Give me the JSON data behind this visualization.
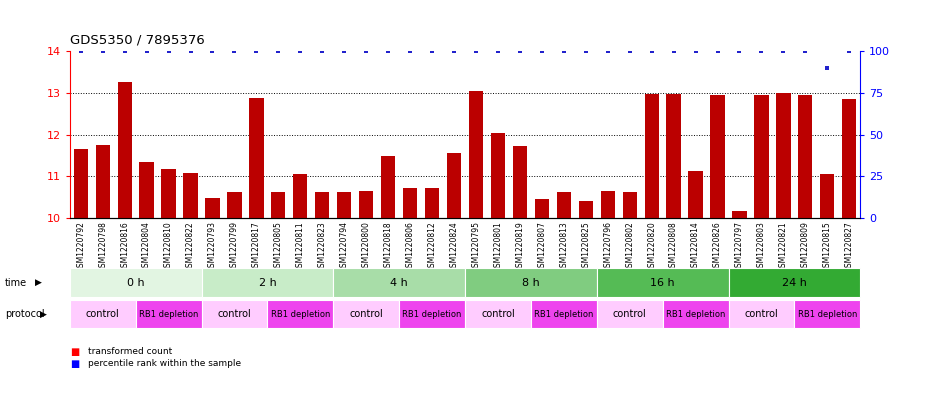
{
  "title": "GDS5350 / 7895376",
  "samples": [
    "GSM1220792",
    "GSM1220798",
    "GSM1220816",
    "GSM1220804",
    "GSM1220810",
    "GSM1220822",
    "GSM1220793",
    "GSM1220799",
    "GSM1220817",
    "GSM1220805",
    "GSM1220811",
    "GSM1220823",
    "GSM1220794",
    "GSM1220800",
    "GSM1220818",
    "GSM1220806",
    "GSM1220812",
    "GSM1220824",
    "GSM1220795",
    "GSM1220801",
    "GSM1220819",
    "GSM1220807",
    "GSM1220813",
    "GSM1220825",
    "GSM1220796",
    "GSM1220802",
    "GSM1220820",
    "GSM1220808",
    "GSM1220814",
    "GSM1220826",
    "GSM1220797",
    "GSM1220803",
    "GSM1220821",
    "GSM1220809",
    "GSM1220815",
    "GSM1220827"
  ],
  "bar_values": [
    11.65,
    11.75,
    13.25,
    11.35,
    11.18,
    11.08,
    10.48,
    10.62,
    12.88,
    10.62,
    11.05,
    10.62,
    10.62,
    10.65,
    11.48,
    10.72,
    10.72,
    11.55,
    13.05,
    12.05,
    11.72,
    10.45,
    10.62,
    10.42,
    10.65,
    10.62,
    12.98,
    12.98,
    11.12,
    12.95,
    10.18,
    12.95,
    13.0,
    12.95,
    11.05,
    12.85
  ],
  "percentile_values": [
    100,
    100,
    100,
    100,
    100,
    100,
    100,
    100,
    100,
    100,
    100,
    100,
    100,
    100,
    100,
    100,
    100,
    100,
    100,
    100,
    100,
    100,
    100,
    100,
    100,
    100,
    100,
    100,
    100,
    100,
    100,
    100,
    100,
    100,
    90,
    100
  ],
  "time_groups": [
    {
      "label": "0 h",
      "start": 0,
      "end": 6,
      "color": "#e8f8e8"
    },
    {
      "label": "2 h",
      "start": 6,
      "end": 12,
      "color": "#cceecc"
    },
    {
      "label": "4 h",
      "start": 12,
      "end": 18,
      "color": "#aaddaa"
    },
    {
      "label": "8 h",
      "start": 18,
      "end": 24,
      "color": "#88cc88"
    },
    {
      "label": "16 h",
      "start": 24,
      "end": 30,
      "color": "#55bb55"
    },
    {
      "label": "24 h",
      "start": 30,
      "end": 36,
      "color": "#33aa33"
    }
  ],
  "protocol_groups": [
    {
      "label": "control",
      "start": 0,
      "end": 3,
      "color": "#ffccff"
    },
    {
      "label": "RB1 depletion",
      "start": 3,
      "end": 6,
      "color": "#ee55ee"
    },
    {
      "label": "control",
      "start": 6,
      "end": 9,
      "color": "#ffccff"
    },
    {
      "label": "RB1 depletion",
      "start": 9,
      "end": 12,
      "color": "#ee55ee"
    },
    {
      "label": "control",
      "start": 12,
      "end": 15,
      "color": "#ffccff"
    },
    {
      "label": "RB1 depletion",
      "start": 15,
      "end": 18,
      "color": "#ee55ee"
    },
    {
      "label": "control",
      "start": 18,
      "end": 21,
      "color": "#ffccff"
    },
    {
      "label": "RB1 depletion",
      "start": 21,
      "end": 24,
      "color": "#ee55ee"
    },
    {
      "label": "control",
      "start": 24,
      "end": 27,
      "color": "#ffccff"
    },
    {
      "label": "RB1 depletion",
      "start": 27,
      "end": 30,
      "color": "#ee55ee"
    },
    {
      "label": "control",
      "start": 30,
      "end": 33,
      "color": "#ffccff"
    },
    {
      "label": "RB1 depletion",
      "start": 33,
      "end": 36,
      "color": "#ee55ee"
    }
  ],
  "bar_color": "#bb0000",
  "percentile_color": "#2222cc",
  "ylim": [
    10,
    14
  ],
  "yticks": [
    10,
    11,
    12,
    13,
    14
  ],
  "y2lim": [
    0,
    100
  ],
  "y2ticks": [
    0,
    25,
    50,
    75,
    100
  ],
  "bar_width": 0.65
}
